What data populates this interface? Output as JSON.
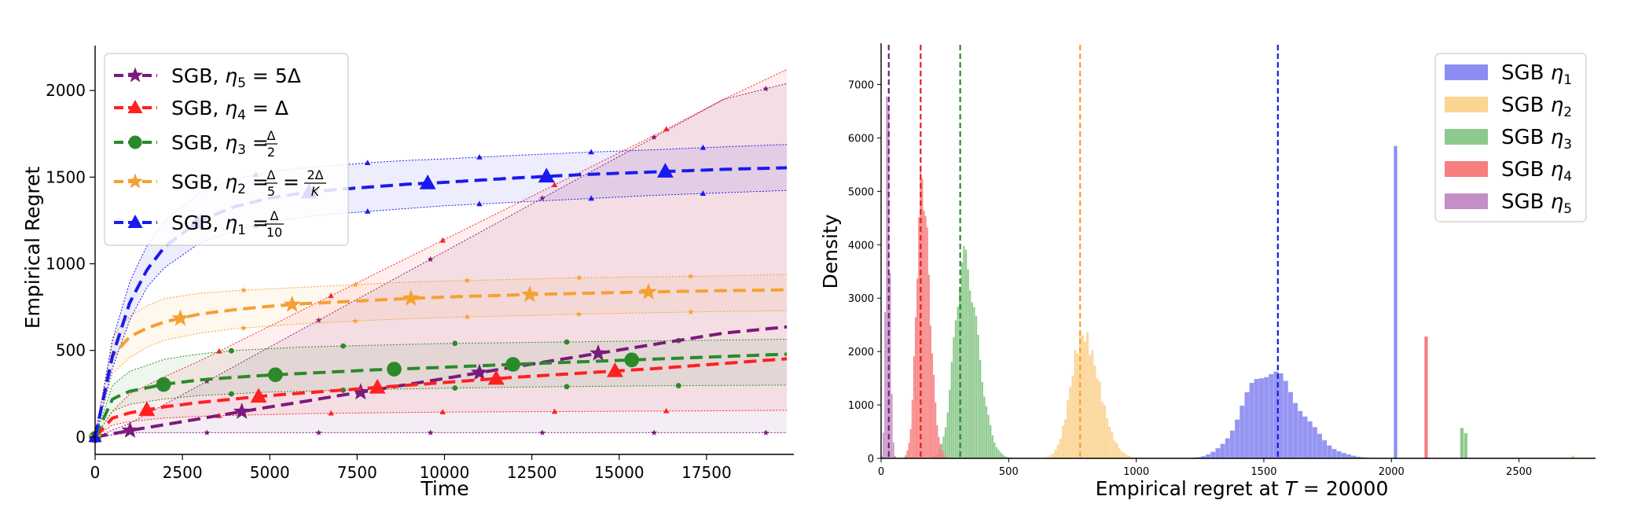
{
  "chart_data": [
    {
      "type": "line",
      "xlabel": "Time",
      "ylabel": "Empirical Regret",
      "xlim": [
        0,
        20000
      ],
      "ylim": [
        -100,
        2250
      ],
      "x_ticks": [
        "0",
        "2500",
        "5000",
        "7500",
        "10000",
        "12500",
        "15000",
        "17500"
      ],
      "y_ticks": [
        "0",
        "500",
        "1000",
        "1500",
        "2000"
      ],
      "grid": false,
      "legend_position": "upper-left",
      "series": [
        {
          "name": "SGB, η5 = 5Δ",
          "color": "#7b1a7b",
          "marker": "star",
          "x": [
            0,
            1000,
            2000,
            3000,
            4000,
            5000,
            6000,
            7000,
            8000,
            9000,
            10000,
            12000,
            14000,
            16000,
            18000,
            20000
          ],
          "y": [
            0,
            38,
            72,
            106,
            140,
            174,
            206,
            240,
            272,
            305,
            338,
            405,
            470,
            535,
            600,
            640
          ],
          "band_upper": [
            0,
            80,
            190,
            300,
            410,
            520,
            630,
            740,
            850,
            960,
            1070,
            1290,
            1510,
            1730,
            1950,
            2050
          ],
          "band_lower": [
            0,
            25,
            25,
            25,
            25,
            25,
            25,
            25,
            25,
            25,
            25,
            25,
            25,
            25,
            25,
            25
          ]
        },
        {
          "name": "SGB, η4 = Δ",
          "color": "#ff2020",
          "marker": "triangle",
          "x": [
            0,
            500,
            1000,
            2000,
            3000,
            4000,
            5000,
            6000,
            7000,
            8000,
            9000,
            10000,
            12000,
            14000,
            16000,
            18000,
            20000
          ],
          "y": [
            0,
            110,
            140,
            175,
            200,
            220,
            240,
            255,
            270,
            285,
            300,
            315,
            345,
            370,
            395,
            425,
            455
          ],
          "band_upper": [
            0,
            150,
            250,
            350,
            440,
            540,
            640,
            740,
            840,
            940,
            1040,
            1140,
            1340,
            1540,
            1740,
            1950,
            2140
          ],
          "band_lower": [
            0,
            70,
            90,
            110,
            120,
            125,
            130,
            135,
            138,
            140,
            142,
            144,
            146,
            148,
            150,
            152,
            155
          ]
        },
        {
          "name": "SGB, η3 = Δ/2",
          "color": "#2a8a2a",
          "marker": "circle",
          "x": [
            0,
            500,
            1000,
            2000,
            3000,
            4000,
            5000,
            6000,
            7000,
            8000,
            9000,
            10000,
            12000,
            14000,
            16000,
            18000,
            20000
          ],
          "y": [
            0,
            220,
            265,
            305,
            330,
            345,
            358,
            368,
            378,
            388,
            395,
            403,
            420,
            435,
            450,
            465,
            480
          ],
          "band_upper": [
            0,
            300,
            380,
            450,
            480,
            500,
            510,
            520,
            525,
            530,
            535,
            540,
            545,
            550,
            555,
            560,
            565
          ],
          "band_lower": [
            0,
            150,
            190,
            220,
            240,
            250,
            260,
            265,
            270,
            275,
            278,
            282,
            288,
            292,
            296,
            298,
            300
          ]
        },
        {
          "name": "SGB, η2 = Δ/5 = 2Δ/K",
          "color": "#f5a030",
          "marker": "star",
          "x": [
            0,
            500,
            1000,
            1500,
            2000,
            3000,
            4000,
            5000,
            6000,
            7000,
            8000,
            9000,
            10000,
            12000,
            14000,
            16000,
            18000,
            20000
          ],
          "y": [
            0,
            470,
            580,
            630,
            665,
            710,
            735,
            755,
            770,
            780,
            790,
            800,
            808,
            820,
            830,
            838,
            845,
            850
          ],
          "band_upper": [
            0,
            580,
            700,
            760,
            800,
            830,
            845,
            855,
            865,
            875,
            885,
            895,
            900,
            910,
            920,
            925,
            930,
            940
          ],
          "band_lower": [
            0,
            370,
            460,
            520,
            560,
            600,
            625,
            640,
            655,
            665,
            675,
            683,
            690,
            700,
            710,
            718,
            725,
            730
          ]
        },
        {
          "name": "SGB, η1 = Δ/10",
          "color": "#1a1aee",
          "marker": "triangle",
          "x": [
            0,
            500,
            1000,
            1500,
            2000,
            3000,
            4000,
            5000,
            6000,
            7000,
            8000,
            9000,
            10000,
            12000,
            14000,
            16000,
            18000,
            20000
          ],
          "y": [
            0,
            470,
            780,
            970,
            1100,
            1250,
            1330,
            1380,
            1410,
            1430,
            1445,
            1460,
            1470,
            1495,
            1515,
            1530,
            1545,
            1555
          ],
          "band_upper": [
            0,
            560,
            900,
            1110,
            1250,
            1410,
            1490,
            1530,
            1555,
            1570,
            1585,
            1597,
            1605,
            1625,
            1643,
            1658,
            1675,
            1690
          ],
          "band_lower": [
            0,
            400,
            680,
            870,
            980,
            1120,
            1190,
            1240,
            1270,
            1290,
            1305,
            1320,
            1335,
            1355,
            1375,
            1395,
            1410,
            1425
          ]
        }
      ]
    },
    {
      "type": "histogram",
      "xlabel": "Empirical regret at T = 20000",
      "ylabel": "Density",
      "xlim": [
        0,
        2800
      ],
      "ylim": [
        0,
        7700
      ],
      "x_ticks": [
        "0",
        "500",
        "1000",
        "1500",
        "2000",
        "2500"
      ],
      "y_ticks": [
        "0",
        "1000",
        "2000",
        "3000",
        "4000",
        "5000",
        "6000",
        "7000"
      ],
      "legend_position": "upper-right",
      "series": [
        {
          "name": "SGB η1",
          "color": "#8c8cf2",
          "mean": 1555,
          "center": 1510,
          "sd": 95,
          "peak": 1760,
          "extra_bars": [
            [
              2025,
              5850
            ]
          ]
        },
        {
          "name": "SGB η2",
          "color": "#fcd493",
          "mean": 780,
          "center": 790,
          "sd": 48,
          "peak": 2480,
          "extra_bars": [
            [
              2720,
              50
            ]
          ]
        },
        {
          "name": "SGB η3",
          "color": "#8dc98d",
          "mean": 310,
          "center": 325,
          "sd": 40,
          "peak": 4000,
          "extra_bars": [
            [
              2285,
              570
            ],
            [
              2300,
              470
            ]
          ]
        },
        {
          "name": "SGB η4",
          "color": "#f77e7e",
          "mean": 155,
          "center": 160,
          "sd": 22,
          "peak": 5600,
          "extra_bars": [
            [
              2145,
              2280
            ]
          ]
        },
        {
          "name": "SGB η5",
          "color": "#c48fc4",
          "mean": 30,
          "center": 25,
          "sd": 7,
          "peak": 7400,
          "extra_bars": []
        }
      ]
    }
  ]
}
